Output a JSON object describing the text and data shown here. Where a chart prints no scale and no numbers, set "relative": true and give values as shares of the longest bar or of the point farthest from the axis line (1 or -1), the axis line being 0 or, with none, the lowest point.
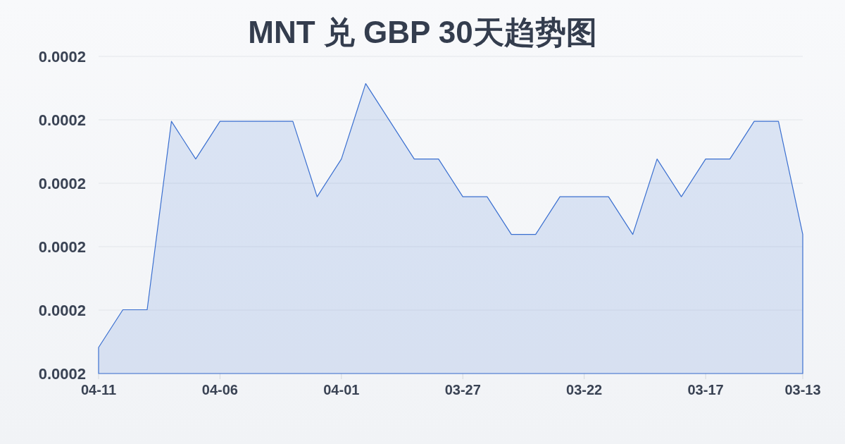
{
  "chart_data": {
    "type": "area",
    "title": "MNT 兑 GBP 30天趋势图",
    "relative": true,
    "categories": [
      "04-11",
      null,
      null,
      null,
      null,
      "04-06",
      null,
      null,
      null,
      null,
      "04-01",
      null,
      null,
      null,
      null,
      "03-27",
      null,
      null,
      null,
      null,
      "03-22",
      null,
      null,
      null,
      null,
      "03-17",
      null,
      null,
      null,
      "03-13"
    ],
    "series": [
      {
        "color": "#3a6fd0",
        "values": [
          0.09,
          0.22,
          0.22,
          0.87,
          0.74,
          0.87,
          0.87,
          0.87,
          0.87,
          0.61,
          0.74,
          1,
          0.87,
          0.74,
          0.74,
          0.61,
          0.61,
          0.48,
          0.48,
          0.61,
          0.61,
          0.61,
          0.48,
          0.74,
          0.61,
          0.74,
          0.74,
          0.87,
          0.87,
          0.48
        ]
      }
    ],
    "annotations": [
      "0.0002",
      "0.0002",
      "0.0002",
      "0.0002",
      "0.0002",
      "0.0002"
    ],
    "grid": "y"
  }
}
